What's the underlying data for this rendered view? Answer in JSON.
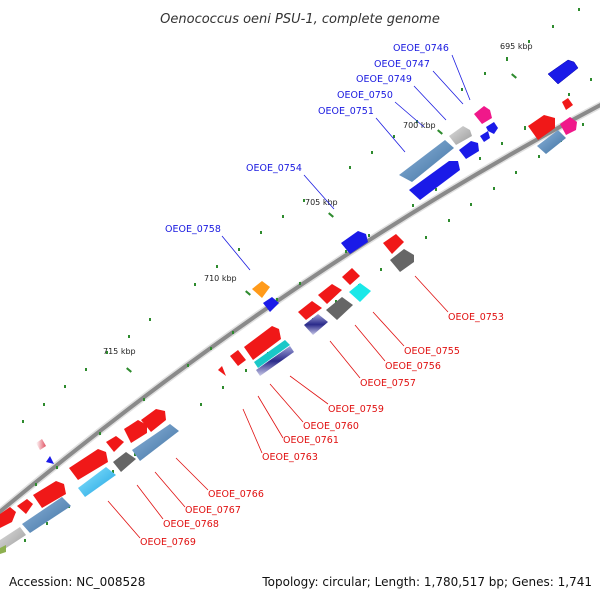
{
  "title": "Oenococcus oeni PSU-1, complete genome",
  "footer": {
    "accession": "Accession: NC_008528",
    "summary": "Topology: circular; Length: 1,780,517 bp; Genes: 1,741"
  },
  "kbp_labels": [
    "695 kbp",
    "700 kbp",
    "705 kbp",
    "710 kbp",
    "715 kbp"
  ],
  "colors": {
    "backbone": "#8a8a8a",
    "tick": "#2e8b2e",
    "forward_label": "#1a1ae0",
    "reverse_label": "#e01010"
  },
  "forward_genes": [
    "OEOE_0746",
    "OEOE_0747",
    "OEOE_0749",
    "OEOE_0750",
    "OEOE_0751",
    "OEOE_0754",
    "OEOE_0758"
  ],
  "reverse_genes": [
    "OEOE_0753",
    "OEOE_0755",
    "OEOE_0756",
    "OEOE_0757",
    "OEOE_0759",
    "OEOE_0760",
    "OEOE_0761",
    "OEOE_0763",
    "OEOE_0766",
    "OEOE_0767",
    "OEOE_0768",
    "OEOE_0769"
  ]
}
